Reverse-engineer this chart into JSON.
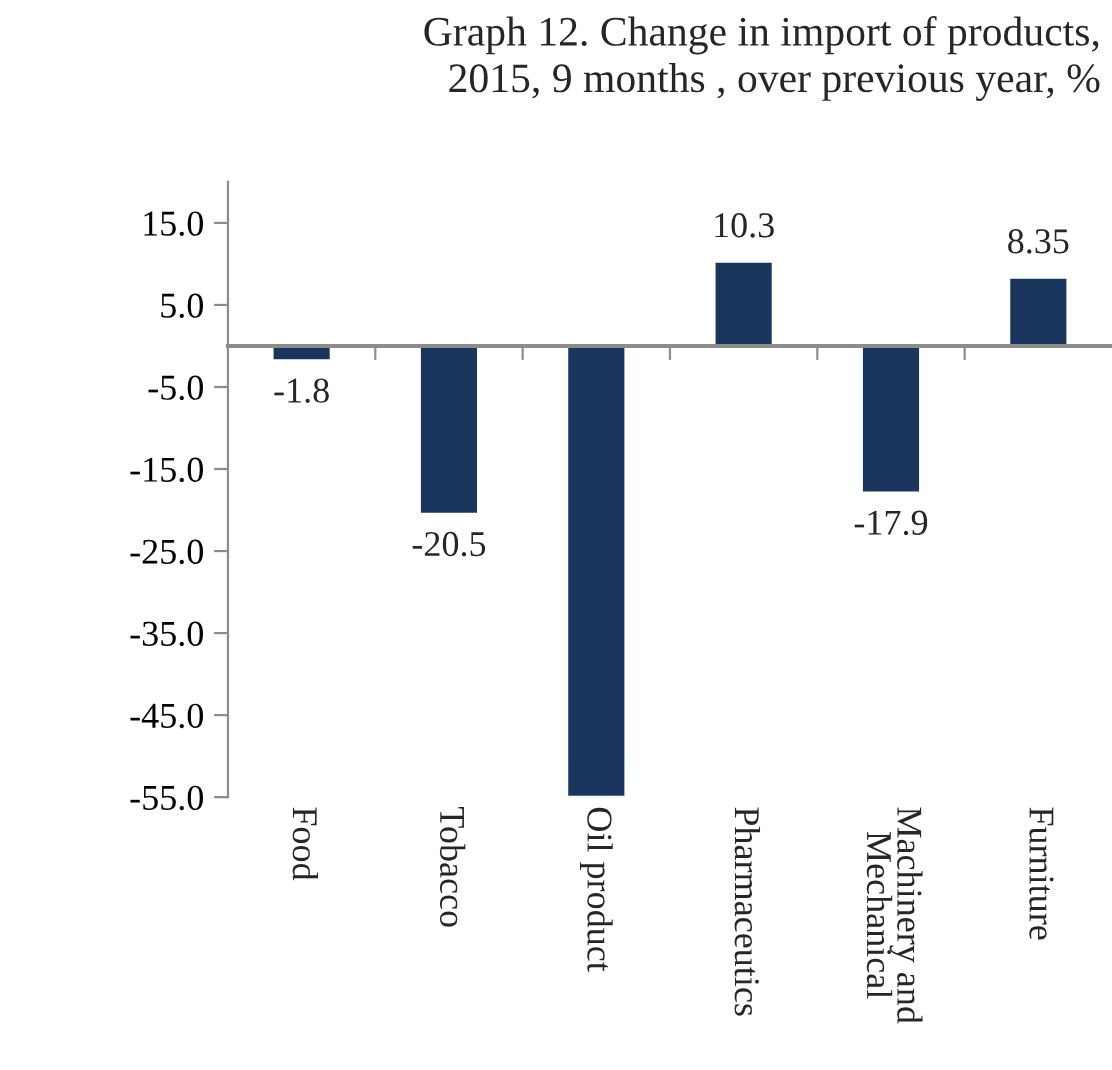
{
  "chart_data": {
    "type": "bar",
    "title": "Graph 12. Change in import of products,\n2015, 9 months , over previous year, %",
    "categories": [
      "Food",
      "Tobacco",
      "Oil product",
      "Pharmaceutics",
      "Machinery and\nMechanical",
      "Furniture"
    ],
    "values": [
      -1.8,
      -20.5,
      -55,
      10.3,
      -17.9,
      8.35
    ],
    "value_labels": [
      "-1.8",
      "-20.5",
      null,
      "10.3",
      "-17.9",
      "8.35"
    ],
    "color": "#1a365d",
    "ylim": [
      -55,
      20
    ],
    "yticks": [
      {
        "value": 15,
        "label": "15.0"
      },
      {
        "value": 5,
        "label": "5.0"
      },
      {
        "value": -5,
        "label": "-5.0"
      },
      {
        "value": -15,
        "label": "-15.0"
      },
      {
        "value": -25,
        "label": "-25.0"
      },
      {
        "value": -35,
        "label": "-35.0"
      },
      {
        "value": -45,
        "label": "-45.0"
      },
      {
        "value": -55,
        "label": "-55.0"
      }
    ],
    "grid": false,
    "legend": false
  }
}
